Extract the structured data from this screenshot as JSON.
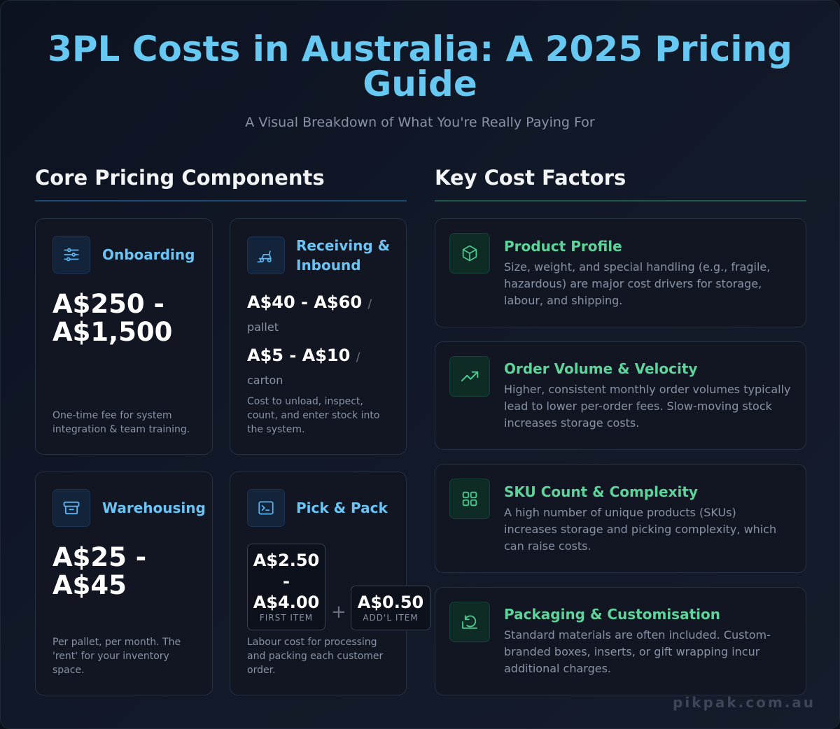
{
  "header": {
    "title": "3PL Costs in Australia: A 2025 Pricing Guide",
    "subtitle": "A Visual Breakdown of What You're Really Paying For"
  },
  "left_section": {
    "heading": "Core Pricing Components",
    "cards": {
      "onboarding": {
        "title": "Onboarding",
        "price": "A$250 - A$1,500",
        "description": "One-time fee for system integration & team training."
      },
      "receiving": {
        "title": "Receiving & Inbound",
        "price_1": "A$40 - A$60",
        "unit_1": "pallet",
        "price_2": "A$5 - A$10",
        "unit_2": "carton",
        "description": "Cost to unload, inspect, count, and enter stock into the system."
      },
      "warehousing": {
        "title": "Warehousing",
        "price": "A$25 - A$45",
        "description": "Per pallet, per month. The 'rent' for your inventory space."
      },
      "pick_pack": {
        "title": "Pick & Pack",
        "first_price": "A$2.50 - A$4.00",
        "first_label": "FIRST ITEM",
        "plus": "+",
        "additional_price": "A$0.50",
        "additional_label": "ADD'L ITEM",
        "description": "Labour cost for processing and packing each customer order."
      }
    }
  },
  "right_section": {
    "heading": "Key Cost Factors",
    "factors": [
      {
        "title": "Product Profile",
        "icon": "box-icon",
        "description": "Size, weight, and special handling (e.g., fragile, hazardous) are major cost drivers for storage, labour, and shipping."
      },
      {
        "title": "Order Volume & Velocity",
        "icon": "trend-up-icon",
        "description": "Higher, consistent monthly order volumes typically lead to lower per-order fees. Slow-moving stock increases storage costs."
      },
      {
        "title": "SKU Count & Complexity",
        "icon": "grid-icon",
        "description": "A high number of unique products (SKUs) increases storage and picking complexity, which can raise costs."
      },
      {
        "title": "Packaging & Customisation",
        "icon": "package-icon",
        "description": "Standard materials are often included. Custom-branded boxes, inserts, or gift wrapping incur additional charges."
      }
    ]
  },
  "footer": {
    "watermark": "pikpak.com.au"
  },
  "colors": {
    "title_blue": "#67c8f2",
    "card_title_blue": "#6cc4f5",
    "factor_green": "#5fd49a",
    "background": "#111827"
  }
}
